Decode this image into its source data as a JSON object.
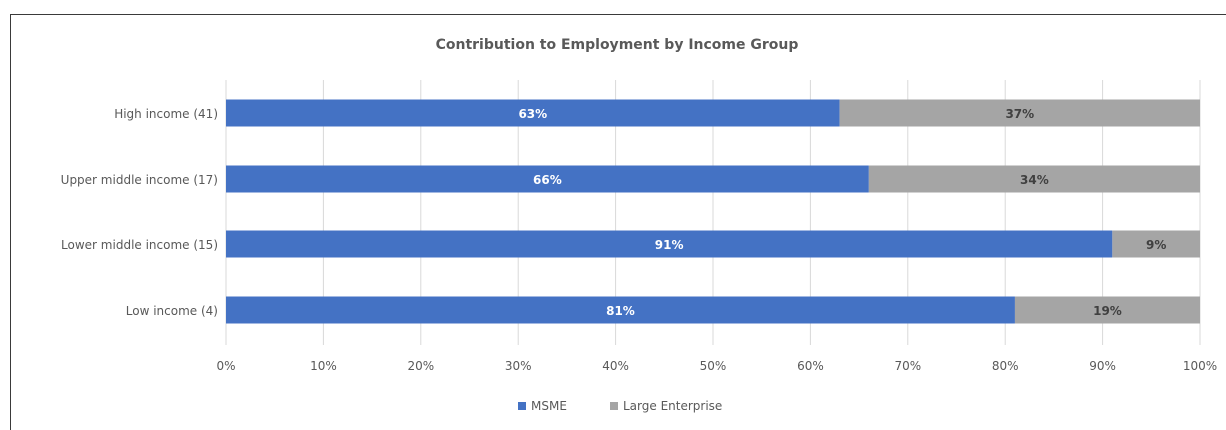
{
  "chart_data": {
    "type": "bar",
    "orientation": "horizontal",
    "stacking": "percent",
    "title": "Contribution to Employment by Income Group",
    "categories": [
      "High income (41)",
      "Upper middle income (17)",
      "Lower middle income (15)",
      "Low income (4)"
    ],
    "series": [
      {
        "name": "MSME",
        "color": "#4472C4",
        "values": [
          63,
          66,
          91,
          81
        ],
        "labels": [
          "63%",
          "66%",
          "91%",
          "81%"
        ],
        "label_color": "#ffffff"
      },
      {
        "name": "Large Enterprise",
        "color": "#A5A5A5",
        "values": [
          37,
          34,
          9,
          19
        ],
        "labels": [
          "37%",
          "34%",
          "9%",
          "19%"
        ],
        "label_color": "#404040"
      }
    ],
    "x_ticks": [
      "0%",
      "10%",
      "20%",
      "30%",
      "40%",
      "50%",
      "60%",
      "70%",
      "80%",
      "90%",
      "100%"
    ],
    "xlim": [
      0,
      100
    ],
    "grid": true,
    "legend_position": "bottom",
    "colors": {
      "gridline": "#d9d9d9",
      "text": "#595959",
      "frame": "#3a3a3a"
    }
  }
}
